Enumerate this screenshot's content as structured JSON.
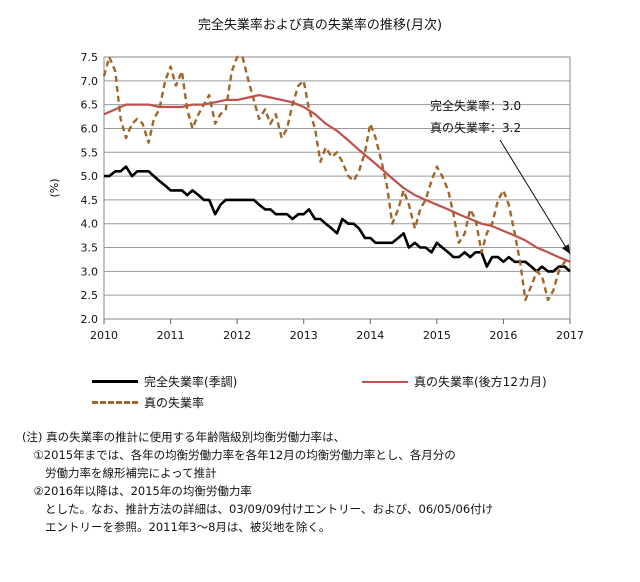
{
  "chart_data": {
    "type": "line",
    "title": "完全失業率および真の失業率の推移(月次)",
    "ylabel": "(%)",
    "xlabel": "",
    "ylim": [
      2.0,
      7.5
    ],
    "xlim": [
      2010,
      2017
    ],
    "y_ticks": [
      "2.0",
      "2.5",
      "3.0",
      "3.5",
      "4.0",
      "4.5",
      "5.0",
      "5.5",
      "6.0",
      "6.5",
      "7.0",
      "7.5"
    ],
    "x_ticks": [
      "2010",
      "2011",
      "2012",
      "2013",
      "2014",
      "2015",
      "2016",
      "2017"
    ],
    "grid": true,
    "legend": "bottom",
    "series": [
      {
        "name": "完全失業率(季調)",
        "color": "#000000",
        "style": "solid",
        "points": [
          [
            2010.0,
            5.0
          ],
          [
            2010.08,
            5.0
          ],
          [
            2010.17,
            5.1
          ],
          [
            2010.25,
            5.1
          ],
          [
            2010.33,
            5.2
          ],
          [
            2010.42,
            5.0
          ],
          [
            2010.5,
            5.1
          ],
          [
            2010.58,
            5.1
          ],
          [
            2010.67,
            5.1
          ],
          [
            2010.75,
            5.0
          ],
          [
            2010.83,
            4.9
          ],
          [
            2010.92,
            4.8
          ],
          [
            2011.0,
            4.7
          ],
          [
            2011.08,
            4.7
          ],
          [
            2011.17,
            4.7
          ],
          [
            2011.25,
            4.6
          ],
          [
            2011.33,
            4.7
          ],
          [
            2011.42,
            4.6
          ],
          [
            2011.5,
            4.5
          ],
          [
            2011.58,
            4.5
          ],
          [
            2011.67,
            4.2
          ],
          [
            2011.75,
            4.4
          ],
          [
            2011.83,
            4.5
          ],
          [
            2011.92,
            4.5
          ],
          [
            2012.0,
            4.5
          ],
          [
            2012.08,
            4.5
          ],
          [
            2012.17,
            4.5
          ],
          [
            2012.25,
            4.5
          ],
          [
            2012.33,
            4.4
          ],
          [
            2012.42,
            4.3
          ],
          [
            2012.5,
            4.3
          ],
          [
            2012.58,
            4.2
          ],
          [
            2012.67,
            4.2
          ],
          [
            2012.75,
            4.2
          ],
          [
            2012.83,
            4.1
          ],
          [
            2012.92,
            4.2
          ],
          [
            2013.0,
            4.2
          ],
          [
            2013.08,
            4.3
          ],
          [
            2013.17,
            4.1
          ],
          [
            2013.25,
            4.1
          ],
          [
            2013.33,
            4.0
          ],
          [
            2013.42,
            3.9
          ],
          [
            2013.5,
            3.8
          ],
          [
            2013.58,
            4.1
          ],
          [
            2013.67,
            4.0
          ],
          [
            2013.75,
            4.0
          ],
          [
            2013.83,
            3.9
          ],
          [
            2013.92,
            3.7
          ],
          [
            2014.0,
            3.7
          ],
          [
            2014.08,
            3.6
          ],
          [
            2014.17,
            3.6
          ],
          [
            2014.25,
            3.6
          ],
          [
            2014.33,
            3.6
          ],
          [
            2014.42,
            3.7
          ],
          [
            2014.5,
            3.8
          ],
          [
            2014.58,
            3.5
          ],
          [
            2014.67,
            3.6
          ],
          [
            2014.75,
            3.5
          ],
          [
            2014.83,
            3.5
          ],
          [
            2014.92,
            3.4
          ],
          [
            2015.0,
            3.6
          ],
          [
            2015.08,
            3.5
          ],
          [
            2015.17,
            3.4
          ],
          [
            2015.25,
            3.3
          ],
          [
            2015.33,
            3.3
          ],
          [
            2015.42,
            3.4
          ],
          [
            2015.5,
            3.3
          ],
          [
            2015.58,
            3.4
          ],
          [
            2015.67,
            3.4
          ],
          [
            2015.75,
            3.1
          ],
          [
            2015.83,
            3.3
          ],
          [
            2015.92,
            3.3
          ],
          [
            2016.0,
            3.2
          ],
          [
            2016.08,
            3.3
          ],
          [
            2016.17,
            3.2
          ],
          [
            2016.25,
            3.2
          ],
          [
            2016.33,
            3.2
          ],
          [
            2016.42,
            3.1
          ],
          [
            2016.5,
            3.0
          ],
          [
            2016.58,
            3.1
          ],
          [
            2016.67,
            3.0
          ],
          [
            2016.75,
            3.0
          ],
          [
            2016.83,
            3.1
          ],
          [
            2016.92,
            3.1
          ],
          [
            2017.0,
            3.0
          ]
        ]
      },
      {
        "name": "真の失業率(後方12カ月)",
        "color": "#c0504d",
        "style": "solid",
        "points": [
          [
            2010.0,
            6.3
          ],
          [
            2010.17,
            6.4
          ],
          [
            2010.33,
            6.5
          ],
          [
            2010.5,
            6.5
          ],
          [
            2010.67,
            6.5
          ],
          [
            2010.83,
            6.45
          ],
          [
            2011.0,
            6.45
          ],
          [
            2011.17,
            6.45
          ],
          [
            2011.33,
            6.5
          ],
          [
            2011.5,
            6.5
          ],
          [
            2011.67,
            6.55
          ],
          [
            2011.83,
            6.6
          ],
          [
            2012.0,
            6.6
          ],
          [
            2012.17,
            6.65
          ],
          [
            2012.33,
            6.7
          ],
          [
            2012.5,
            6.65
          ],
          [
            2012.67,
            6.6
          ],
          [
            2012.83,
            6.55
          ],
          [
            2013.0,
            6.45
          ],
          [
            2013.17,
            6.3
          ],
          [
            2013.33,
            6.1
          ],
          [
            2013.5,
            5.95
          ],
          [
            2013.67,
            5.75
          ],
          [
            2013.83,
            5.55
          ],
          [
            2014.0,
            5.35
          ],
          [
            2014.17,
            5.15
          ],
          [
            2014.33,
            4.95
          ],
          [
            2014.5,
            4.75
          ],
          [
            2014.67,
            4.6
          ],
          [
            2014.83,
            4.5
          ],
          [
            2015.0,
            4.4
          ],
          [
            2015.17,
            4.3
          ],
          [
            2015.33,
            4.2
          ],
          [
            2015.5,
            4.1
          ],
          [
            2015.67,
            4.0
          ],
          [
            2015.83,
            3.95
          ],
          [
            2016.0,
            3.85
          ],
          [
            2016.17,
            3.75
          ],
          [
            2016.33,
            3.65
          ],
          [
            2016.5,
            3.5
          ],
          [
            2016.67,
            3.4
          ],
          [
            2016.83,
            3.3
          ],
          [
            2017.0,
            3.2
          ]
        ]
      },
      {
        "name": "真の失業率",
        "color": "#a0662a",
        "style": "dashed",
        "points": [
          [
            2010.0,
            7.1
          ],
          [
            2010.08,
            7.5
          ],
          [
            2010.17,
            7.2
          ],
          [
            2010.25,
            6.2
          ],
          [
            2010.33,
            5.8
          ],
          [
            2010.42,
            6.1
          ],
          [
            2010.5,
            6.2
          ],
          [
            2010.58,
            6.1
          ],
          [
            2010.67,
            5.7
          ],
          [
            2010.75,
            6.2
          ],
          [
            2010.83,
            6.4
          ],
          [
            2010.92,
            7.0
          ],
          [
            2011.0,
            7.3
          ],
          [
            2011.08,
            6.9
          ],
          [
            2011.17,
            7.2
          ],
          [
            2011.25,
            6.4
          ],
          [
            2011.33,
            6.0
          ],
          [
            2011.42,
            6.3
          ],
          [
            2011.5,
            6.5
          ],
          [
            2011.58,
            6.7
          ],
          [
            2011.67,
            6.1
          ],
          [
            2011.75,
            6.3
          ],
          [
            2011.83,
            6.4
          ],
          [
            2011.92,
            7.2
          ],
          [
            2012.0,
            7.5
          ],
          [
            2012.08,
            7.5
          ],
          [
            2012.17,
            7.0
          ],
          [
            2012.25,
            6.6
          ],
          [
            2012.33,
            6.2
          ],
          [
            2012.42,
            6.4
          ],
          [
            2012.5,
            6.1
          ],
          [
            2012.58,
            6.3
          ],
          [
            2012.67,
            5.8
          ],
          [
            2012.75,
            6.0
          ],
          [
            2012.83,
            6.5
          ],
          [
            2012.92,
            6.9
          ],
          [
            2013.0,
            7.0
          ],
          [
            2013.08,
            6.4
          ],
          [
            2013.17,
            6.0
          ],
          [
            2013.25,
            5.3
          ],
          [
            2013.33,
            5.6
          ],
          [
            2013.42,
            5.4
          ],
          [
            2013.5,
            5.5
          ],
          [
            2013.58,
            5.3
          ],
          [
            2013.67,
            5.0
          ],
          [
            2013.75,
            4.9
          ],
          [
            2013.83,
            5.1
          ],
          [
            2013.92,
            5.5
          ],
          [
            2014.0,
            6.1
          ],
          [
            2014.08,
            5.8
          ],
          [
            2014.17,
            5.3
          ],
          [
            2014.25,
            4.8
          ],
          [
            2014.33,
            4.0
          ],
          [
            2014.42,
            4.3
          ],
          [
            2014.5,
            4.7
          ],
          [
            2014.58,
            4.4
          ],
          [
            2014.67,
            3.9
          ],
          [
            2014.75,
            4.3
          ],
          [
            2014.83,
            4.5
          ],
          [
            2014.92,
            4.9
          ],
          [
            2015.0,
            5.2
          ],
          [
            2015.08,
            5.0
          ],
          [
            2015.17,
            4.7
          ],
          [
            2015.25,
            4.2
          ],
          [
            2015.33,
            3.6
          ],
          [
            2015.42,
            3.8
          ],
          [
            2015.5,
            4.3
          ],
          [
            2015.58,
            4.1
          ],
          [
            2015.67,
            3.4
          ],
          [
            2015.75,
            3.8
          ],
          [
            2015.83,
            4.0
          ],
          [
            2015.92,
            4.5
          ],
          [
            2016.0,
            4.7
          ],
          [
            2016.08,
            4.4
          ],
          [
            2016.17,
            3.8
          ],
          [
            2016.25,
            3.2
          ],
          [
            2016.33,
            2.4
          ],
          [
            2016.42,
            2.7
          ],
          [
            2016.5,
            3.0
          ],
          [
            2016.58,
            2.9
          ],
          [
            2016.67,
            2.4
          ],
          [
            2016.75,
            2.6
          ],
          [
            2016.83,
            3.0
          ],
          [
            2016.92,
            3.2
          ],
          [
            2017.0,
            3.2
          ]
        ]
      }
    ],
    "annotation": {
      "line1": "完全失業率：3.0",
      "line2": "真の失業率：3.2",
      "arrow_to": [
        2017.0,
        3.2
      ]
    }
  },
  "notes": [
    "(注) 真の失業率の推計に使用する年齢階級別均衡労働力率は、",
    "　①2015年までは、各年の均衡労働力率を各年12月の均衡労働力率とし、各月分の",
    "　　労働力率を線形補完によって推計",
    "　②2016年以降は、2015年の均衡労働力率",
    "　　とした。なお、推計方法の詳細は、03/09/09付けエントリー、および、06/05/06付け",
    "　　エントリーを参照。2011年3～8月は、被災地を除く。"
  ]
}
